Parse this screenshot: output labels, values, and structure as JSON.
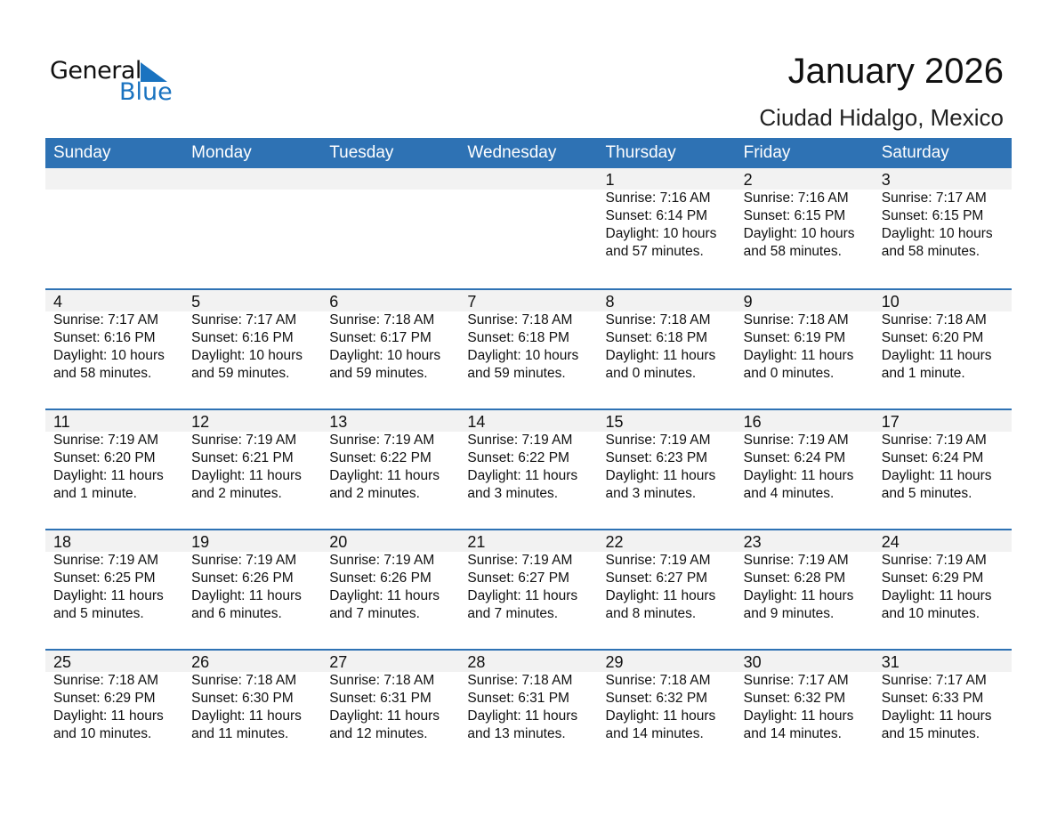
{
  "logo": {
    "line1": "General",
    "line2": "Blue",
    "accent": "#1a73c0"
  },
  "title": "January 2026",
  "location": "Ciudad Hidalgo, Mexico",
  "colors": {
    "header": "#2e72b4",
    "band": "#f2f2f2"
  },
  "days": [
    "Sunday",
    "Monday",
    "Tuesday",
    "Wednesday",
    "Thursday",
    "Friday",
    "Saturday"
  ],
  "weeks": [
    [
      null,
      null,
      null,
      null,
      {
        "d": "1",
        "sr": "Sunrise: 7:16 AM",
        "ss": "Sunset: 6:14 PM",
        "dl": "Daylight: 10 hours",
        "dm": "and 57 minutes."
      },
      {
        "d": "2",
        "sr": "Sunrise: 7:16 AM",
        "ss": "Sunset: 6:15 PM",
        "dl": "Daylight: 10 hours",
        "dm": "and 58 minutes."
      },
      {
        "d": "3",
        "sr": "Sunrise: 7:17 AM",
        "ss": "Sunset: 6:15 PM",
        "dl": "Daylight: 10 hours",
        "dm": "and 58 minutes."
      }
    ],
    [
      {
        "d": "4",
        "sr": "Sunrise: 7:17 AM",
        "ss": "Sunset: 6:16 PM",
        "dl": "Daylight: 10 hours",
        "dm": "and 58 minutes."
      },
      {
        "d": "5",
        "sr": "Sunrise: 7:17 AM",
        "ss": "Sunset: 6:16 PM",
        "dl": "Daylight: 10 hours",
        "dm": "and 59 minutes."
      },
      {
        "d": "6",
        "sr": "Sunrise: 7:18 AM",
        "ss": "Sunset: 6:17 PM",
        "dl": "Daylight: 10 hours",
        "dm": "and 59 minutes."
      },
      {
        "d": "7",
        "sr": "Sunrise: 7:18 AM",
        "ss": "Sunset: 6:18 PM",
        "dl": "Daylight: 10 hours",
        "dm": "and 59 minutes."
      },
      {
        "d": "8",
        "sr": "Sunrise: 7:18 AM",
        "ss": "Sunset: 6:18 PM",
        "dl": "Daylight: 11 hours",
        "dm": "and 0 minutes."
      },
      {
        "d": "9",
        "sr": "Sunrise: 7:18 AM",
        "ss": "Sunset: 6:19 PM",
        "dl": "Daylight: 11 hours",
        "dm": "and 0 minutes."
      },
      {
        "d": "10",
        "sr": "Sunrise: 7:18 AM",
        "ss": "Sunset: 6:20 PM",
        "dl": "Daylight: 11 hours",
        "dm": "and 1 minute."
      }
    ],
    [
      {
        "d": "11",
        "sr": "Sunrise: 7:19 AM",
        "ss": "Sunset: 6:20 PM",
        "dl": "Daylight: 11 hours",
        "dm": "and 1 minute."
      },
      {
        "d": "12",
        "sr": "Sunrise: 7:19 AM",
        "ss": "Sunset: 6:21 PM",
        "dl": "Daylight: 11 hours",
        "dm": "and 2 minutes."
      },
      {
        "d": "13",
        "sr": "Sunrise: 7:19 AM",
        "ss": "Sunset: 6:22 PM",
        "dl": "Daylight: 11 hours",
        "dm": "and 2 minutes."
      },
      {
        "d": "14",
        "sr": "Sunrise: 7:19 AM",
        "ss": "Sunset: 6:22 PM",
        "dl": "Daylight: 11 hours",
        "dm": "and 3 minutes."
      },
      {
        "d": "15",
        "sr": "Sunrise: 7:19 AM",
        "ss": "Sunset: 6:23 PM",
        "dl": "Daylight: 11 hours",
        "dm": "and 3 minutes."
      },
      {
        "d": "16",
        "sr": "Sunrise: 7:19 AM",
        "ss": "Sunset: 6:24 PM",
        "dl": "Daylight: 11 hours",
        "dm": "and 4 minutes."
      },
      {
        "d": "17",
        "sr": "Sunrise: 7:19 AM",
        "ss": "Sunset: 6:24 PM",
        "dl": "Daylight: 11 hours",
        "dm": "and 5 minutes."
      }
    ],
    [
      {
        "d": "18",
        "sr": "Sunrise: 7:19 AM",
        "ss": "Sunset: 6:25 PM",
        "dl": "Daylight: 11 hours",
        "dm": "and 5 minutes."
      },
      {
        "d": "19",
        "sr": "Sunrise: 7:19 AM",
        "ss": "Sunset: 6:26 PM",
        "dl": "Daylight: 11 hours",
        "dm": "and 6 minutes."
      },
      {
        "d": "20",
        "sr": "Sunrise: 7:19 AM",
        "ss": "Sunset: 6:26 PM",
        "dl": "Daylight: 11 hours",
        "dm": "and 7 minutes."
      },
      {
        "d": "21",
        "sr": "Sunrise: 7:19 AM",
        "ss": "Sunset: 6:27 PM",
        "dl": "Daylight: 11 hours",
        "dm": "and 7 minutes."
      },
      {
        "d": "22",
        "sr": "Sunrise: 7:19 AM",
        "ss": "Sunset: 6:27 PM",
        "dl": "Daylight: 11 hours",
        "dm": "and 8 minutes."
      },
      {
        "d": "23",
        "sr": "Sunrise: 7:19 AM",
        "ss": "Sunset: 6:28 PM",
        "dl": "Daylight: 11 hours",
        "dm": "and 9 minutes."
      },
      {
        "d": "24",
        "sr": "Sunrise: 7:19 AM",
        "ss": "Sunset: 6:29 PM",
        "dl": "Daylight: 11 hours",
        "dm": "and 10 minutes."
      }
    ],
    [
      {
        "d": "25",
        "sr": "Sunrise: 7:18 AM",
        "ss": "Sunset: 6:29 PM",
        "dl": "Daylight: 11 hours",
        "dm": "and 10 minutes."
      },
      {
        "d": "26",
        "sr": "Sunrise: 7:18 AM",
        "ss": "Sunset: 6:30 PM",
        "dl": "Daylight: 11 hours",
        "dm": "and 11 minutes."
      },
      {
        "d": "27",
        "sr": "Sunrise: 7:18 AM",
        "ss": "Sunset: 6:31 PM",
        "dl": "Daylight: 11 hours",
        "dm": "and 12 minutes."
      },
      {
        "d": "28",
        "sr": "Sunrise: 7:18 AM",
        "ss": "Sunset: 6:31 PM",
        "dl": "Daylight: 11 hours",
        "dm": "and 13 minutes."
      },
      {
        "d": "29",
        "sr": "Sunrise: 7:18 AM",
        "ss": "Sunset: 6:32 PM",
        "dl": "Daylight: 11 hours",
        "dm": "and 14 minutes."
      },
      {
        "d": "30",
        "sr": "Sunrise: 7:17 AM",
        "ss": "Sunset: 6:32 PM",
        "dl": "Daylight: 11 hours",
        "dm": "and 14 minutes."
      },
      {
        "d": "31",
        "sr": "Sunrise: 7:17 AM",
        "ss": "Sunset: 6:33 PM",
        "dl": "Daylight: 11 hours",
        "dm": "and 15 minutes."
      }
    ]
  ]
}
